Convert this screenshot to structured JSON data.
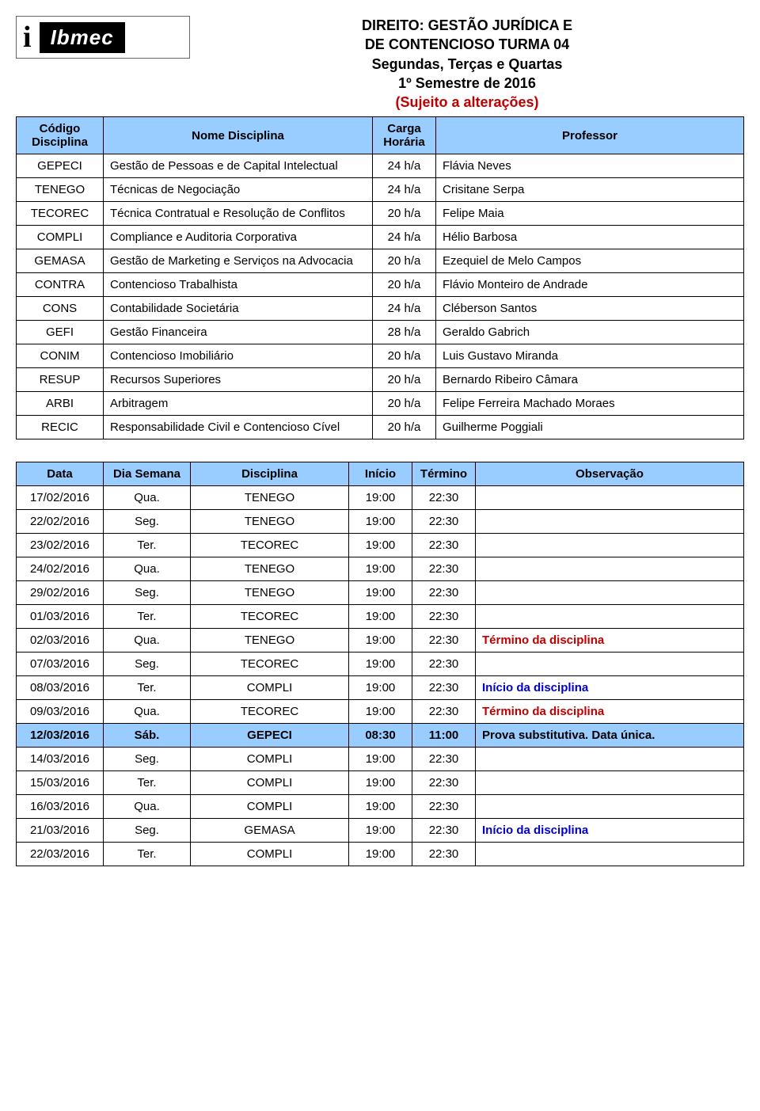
{
  "logo": {
    "glyph": "i",
    "brand": "Ibmec"
  },
  "title": {
    "line1": "DIREITO: GESTÃO JURÍDICA E",
    "line2": "DE CONTENCIOSO TURMA 04",
    "line3": "Segundas, Terças e Quartas",
    "line4": "1º Semestre de 2016",
    "alert": "(Sujeito a alterações)"
  },
  "courses": {
    "headers": {
      "code": "Código Disciplina",
      "name": "Nome Disciplina",
      "hours": "Carga Horária",
      "prof": "Professor"
    },
    "rows": [
      {
        "code": "GEPECI",
        "name": "Gestão de Pessoas e de Capital Intelectual",
        "hours": "24 h/a",
        "prof": "Flávia Neves"
      },
      {
        "code": "TENEGO",
        "name": "Técnicas de Negociação",
        "hours": "24 h/a",
        "prof": "Crisitane Serpa"
      },
      {
        "code": "TECOREC",
        "name": "Técnica Contratual e Resolução de Conflitos",
        "hours": "20 h/a",
        "prof": "Felipe Maia"
      },
      {
        "code": "COMPLI",
        "name": "Compliance e Auditoria Corporativa",
        "hours": "24 h/a",
        "prof": "Hélio Barbosa"
      },
      {
        "code": "GEMASA",
        "name": "Gestão de Marketing e Serviços na Advocacia",
        "hours": "20 h/a",
        "prof": "Ezequiel de Melo Campos"
      },
      {
        "code": "CONTRA",
        "name": "Contencioso Trabalhista",
        "hours": "20 h/a",
        "prof": "Flávio Monteiro de Andrade"
      },
      {
        "code": "CONS",
        "name": "Contabilidade Societária",
        "hours": "24 h/a",
        "prof": "Cléberson Santos"
      },
      {
        "code": "GEFI",
        "name": "Gestão Financeira",
        "hours": "28 h/a",
        "prof": "Geraldo Gabrich"
      },
      {
        "code": "CONIM",
        "name": "Contencioso Imobiliário",
        "hours": "20 h/a",
        "prof": "Luis Gustavo Miranda"
      },
      {
        "code": "RESUP",
        "name": "Recursos Superiores",
        "hours": "20 h/a",
        "prof": "Bernardo Ribeiro Câmara"
      },
      {
        "code": "ARBI",
        "name": "Arbitragem",
        "hours": "20 h/a",
        "prof": "Felipe Ferreira Machado Moraes"
      },
      {
        "code": "RECIC",
        "name": "Responsabilidade Civil e Contencioso Cível",
        "hours": "20 h/a",
        "prof": "Guilherme Poggiali"
      }
    ]
  },
  "schedule": {
    "headers": {
      "date": "Data",
      "dow": "Dia Semana",
      "disc": "Disciplina",
      "start": "Início",
      "end": "Término",
      "obs": "Observação"
    },
    "rows": [
      {
        "date": "17/02/2016",
        "dow": "Qua.",
        "disc": "TENEGO",
        "start": "19:00",
        "end": "22:30",
        "obs": "",
        "style": ""
      },
      {
        "date": "22/02/2016",
        "dow": "Seg.",
        "disc": "TENEGO",
        "start": "19:00",
        "end": "22:30",
        "obs": "",
        "style": ""
      },
      {
        "date": "23/02/2016",
        "dow": "Ter.",
        "disc": "TECOREC",
        "start": "19:00",
        "end": "22:30",
        "obs": "",
        "style": ""
      },
      {
        "date": "24/02/2016",
        "dow": "Qua.",
        "disc": "TENEGO",
        "start": "19:00",
        "end": "22:30",
        "obs": "",
        "style": ""
      },
      {
        "date": "29/02/2016",
        "dow": "Seg.",
        "disc": "TENEGO",
        "start": "19:00",
        "end": "22:30",
        "obs": "",
        "style": ""
      },
      {
        "date": "01/03/2016",
        "dow": "Ter.",
        "disc": "TECOREC",
        "start": "19:00",
        "end": "22:30",
        "obs": "",
        "style": ""
      },
      {
        "date": "02/03/2016",
        "dow": "Qua.",
        "disc": "TENEGO",
        "start": "19:00",
        "end": "22:30",
        "obs": "Término da disciplina",
        "style": "red"
      },
      {
        "date": "07/03/2016",
        "dow": "Seg.",
        "disc": "TECOREC",
        "start": "19:00",
        "end": "22:30",
        "obs": "",
        "style": ""
      },
      {
        "date": "08/03/2016",
        "dow": "Ter.",
        "disc": "COMPLI",
        "start": "19:00",
        "end": "22:30",
        "obs": "Início da disciplina",
        "style": "blue"
      },
      {
        "date": "09/03/2016",
        "dow": "Qua.",
        "disc": "TECOREC",
        "start": "19:00",
        "end": "22:30",
        "obs": "Término da disciplina",
        "style": "red"
      },
      {
        "date": "12/03/2016",
        "dow": "Sáb.",
        "disc": "GEPECI",
        "start": "08:30",
        "end": "11:00",
        "obs": "Prova substitutiva. Data única.",
        "style": "hl"
      },
      {
        "date": "14/03/2016",
        "dow": "Seg.",
        "disc": "COMPLI",
        "start": "19:00",
        "end": "22:30",
        "obs": "",
        "style": ""
      },
      {
        "date": "15/03/2016",
        "dow": "Ter.",
        "disc": "COMPLI",
        "start": "19:00",
        "end": "22:30",
        "obs": "",
        "style": ""
      },
      {
        "date": "16/03/2016",
        "dow": "Qua.",
        "disc": "COMPLI",
        "start": "19:00",
        "end": "22:30",
        "obs": "",
        "style": ""
      },
      {
        "date": "21/03/2016",
        "dow": "Seg.",
        "disc": "GEMASA",
        "start": "19:00",
        "end": "22:30",
        "obs": "Início da disciplina",
        "style": "blue"
      },
      {
        "date": "22/03/2016",
        "dow": "Ter.",
        "disc": "COMPLI",
        "start": "19:00",
        "end": "22:30",
        "obs": "",
        "style": ""
      }
    ]
  },
  "colors": {
    "header_bg": "#99ccff",
    "obs_red": "#c00000",
    "obs_blue": "#0000cc",
    "title_alert": "#c00000"
  }
}
